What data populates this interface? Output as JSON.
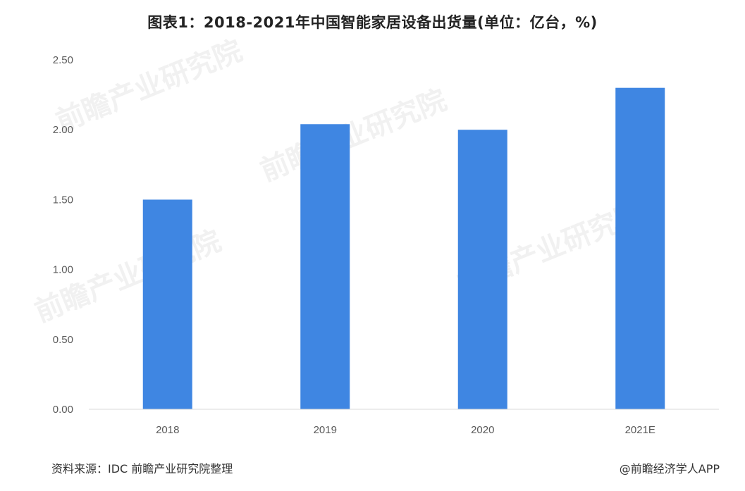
{
  "chart_data": {
    "type": "bar",
    "title": "图表1：2018-2021年中国智能家居设备出货量(单位：亿台，%)",
    "categories": [
      "2018",
      "2019",
      "2020",
      "2021E"
    ],
    "values": [
      1.5,
      2.04,
      2.0,
      2.3
    ],
    "ylim": [
      0,
      2.5
    ],
    "yticks": [
      "0.00",
      "0.50",
      "1.00",
      "1.50",
      "2.00",
      "2.50"
    ],
    "xlabel": "",
    "ylabel": "",
    "bar_color": "#3f86e2",
    "grid": false,
    "legend": "none"
  },
  "watermark_text": "前瞻产业研究院",
  "footer": {
    "source": "资料来源：IDC 前瞻产业研究院整理",
    "credit": "@前瞻经济学人APP"
  }
}
